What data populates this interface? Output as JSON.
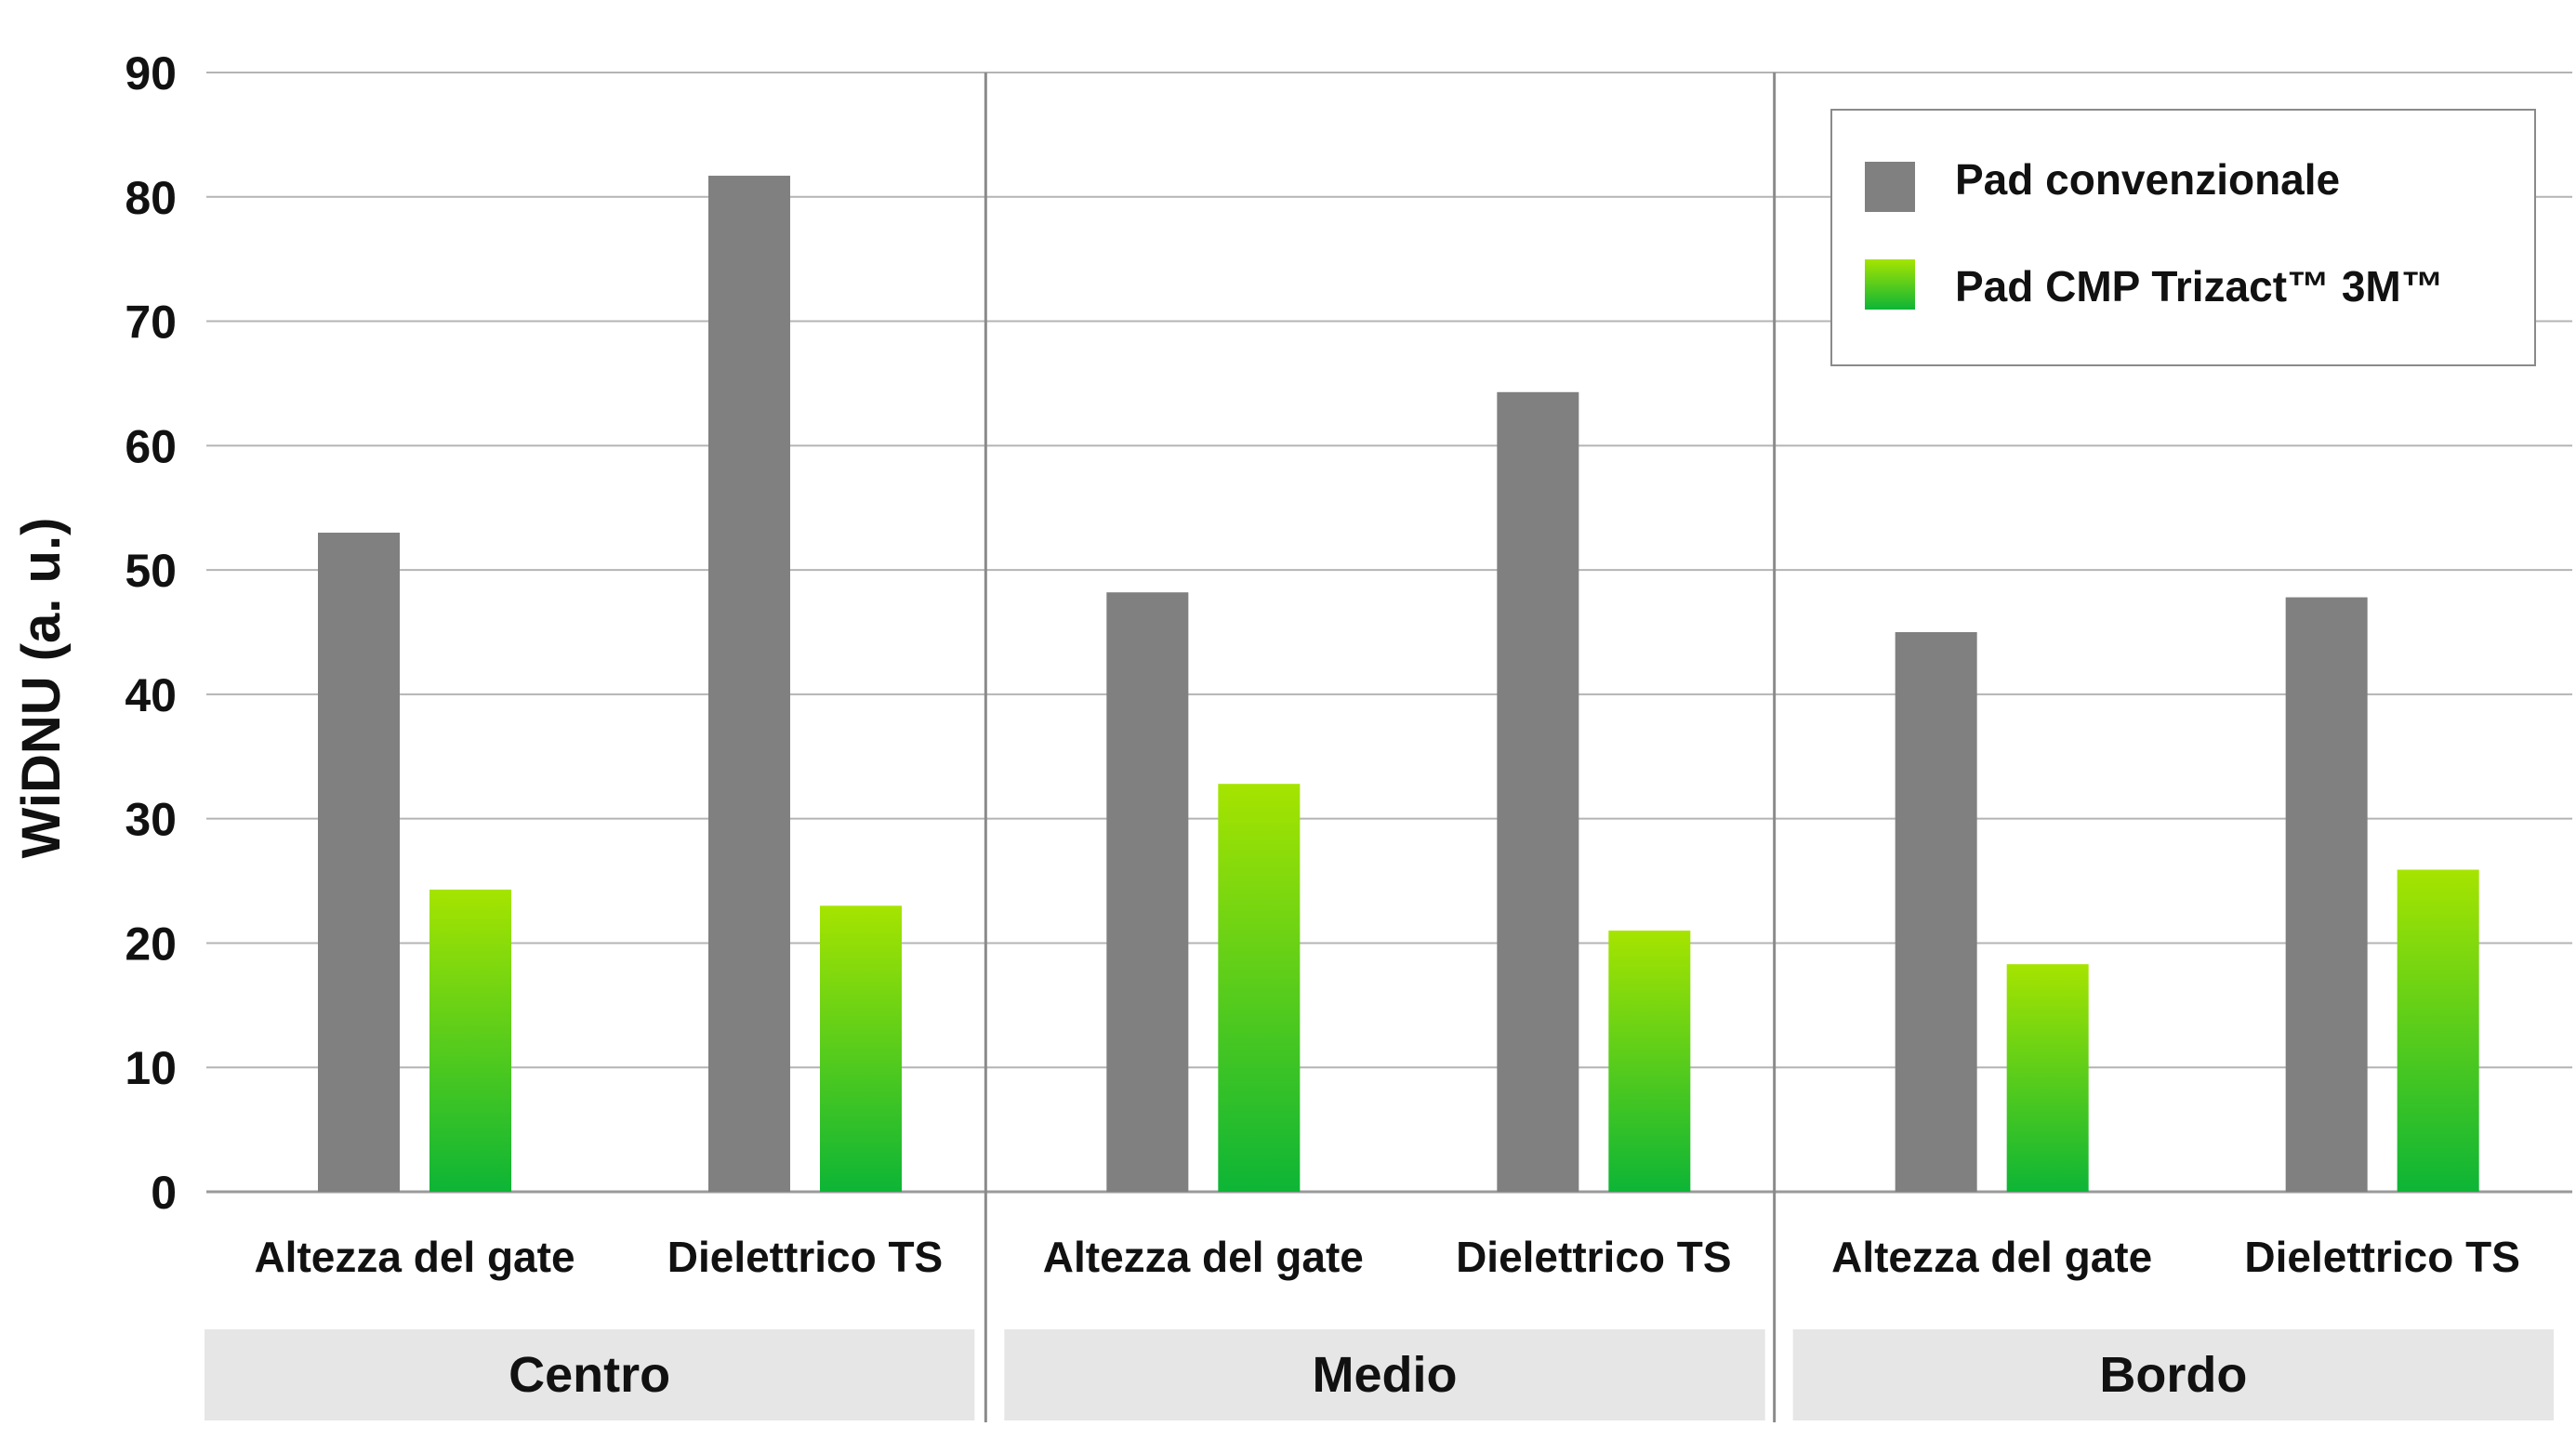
{
  "chart_data": {
    "type": "bar",
    "title": "",
    "ylabel": "WiDNU (a. u.)",
    "ylim": [
      0,
      90
    ],
    "yticks": [
      0,
      10,
      20,
      30,
      40,
      50,
      60,
      70,
      80,
      90
    ],
    "grid": true,
    "legend_position": "top-right",
    "groups": [
      {
        "name": "Centro",
        "categories": [
          "Altezza del gate",
          "Dielettrico TS"
        ]
      },
      {
        "name": "Medio",
        "categories": [
          "Altezza del gate",
          "Dielettrico TS"
        ]
      },
      {
        "name": "Bordo",
        "categories": [
          "Altezza del gate",
          "Dielettrico TS"
        ]
      }
    ],
    "series": [
      {
        "name": "Pad convenzionale",
        "color": "#808080",
        "values": [
          53,
          81.7,
          48.2,
          64.3,
          45,
          47.8
        ]
      },
      {
        "name": "Pad CMP Trizact™ 3M™",
        "color_top": "#a6e400",
        "color_bottom": "#0db536",
        "values": [
          24.3,
          23,
          32.8,
          21,
          18.3,
          25.9
        ]
      }
    ]
  }
}
